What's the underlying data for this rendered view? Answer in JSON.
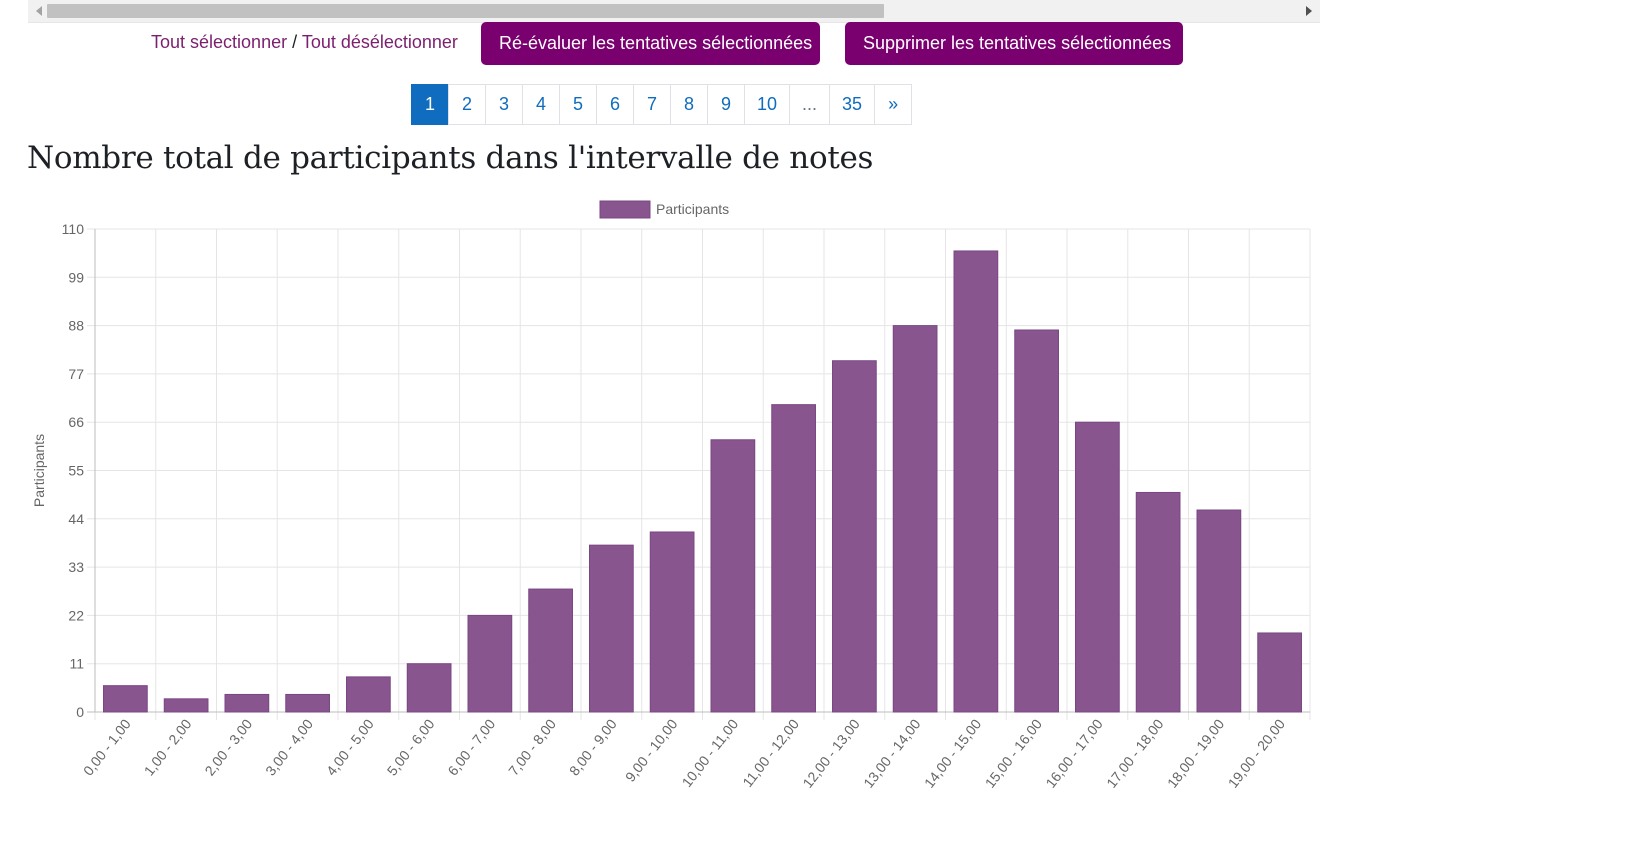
{
  "selection": {
    "select_all": "Tout sélectionner",
    "separator": "/",
    "deselect_all": "Tout désélectionner"
  },
  "buttons": {
    "regrade": "Ré-évaluer les tentatives sélectionnées",
    "delete": "Supprimer les tentatives sélectionnées"
  },
  "pagination": {
    "pages": [
      "1",
      "2",
      "3",
      "4",
      "5",
      "6",
      "7",
      "8",
      "9",
      "10",
      "...",
      "35",
      "»"
    ],
    "active": "1"
  },
  "heading": "Nombre total de participants dans l'intervalle de notes",
  "colors": {
    "bar": "#88558f",
    "accent": "#7a0070",
    "link": "#0f6cbf"
  },
  "chart_data": {
    "type": "bar",
    "title": "",
    "xlabel": "",
    "ylabel": "Participants",
    "legend": {
      "placement": "top-center",
      "entries": [
        "Participants"
      ]
    },
    "grid": true,
    "ylim": [
      0,
      110
    ],
    "yticks": [
      "0",
      "11",
      "22",
      "33",
      "44",
      "55",
      "66",
      "77",
      "88",
      "99",
      "110"
    ],
    "categories": [
      "0,00 - 1,00",
      "1,00 - 2,00",
      "2,00 - 3,00",
      "3,00 - 4,00",
      "4,00 - 5,00",
      "5,00 - 6,00",
      "6,00 - 7,00",
      "7,00 - 8,00",
      "8,00 - 9,00",
      "9,00 - 10,00",
      "10,00 - 11,00",
      "11,00 - 12,00",
      "12,00 - 13,00",
      "13,00 - 14,00",
      "14,00 - 15,00",
      "15,00 - 16,00",
      "16,00 - 17,00",
      "17,00 - 18,00",
      "18,00 - 19,00",
      "19,00 - 20,00"
    ],
    "series": [
      {
        "name": "Participants",
        "values": [
          6,
          3,
          4,
          4,
          8,
          11,
          22,
          28,
          38,
          41,
          62,
          70,
          80,
          88,
          105,
          87,
          66,
          50,
          46,
          18
        ]
      }
    ]
  }
}
